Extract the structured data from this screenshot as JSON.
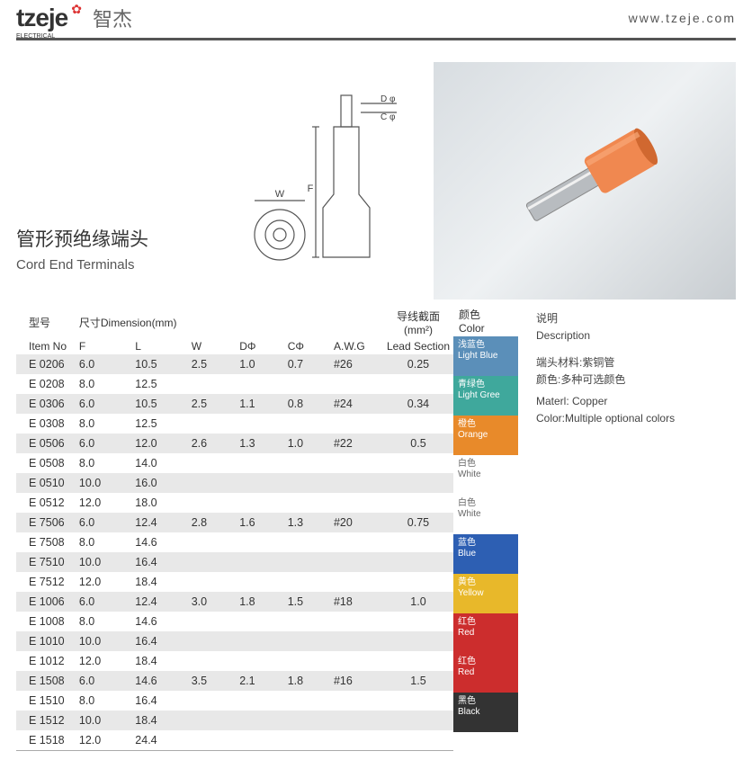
{
  "header": {
    "brand_en": "tzeje",
    "brand_cn": "智杰",
    "url": "www.tzeje.com"
  },
  "title": {
    "cn": "管形预绝缘端头",
    "en": "Cord End Terminals"
  },
  "diagram": {
    "labels": {
      "D": "D",
      "C": "C",
      "F": "F",
      "W": "W",
      "phi": "φ"
    }
  },
  "thead": {
    "item_cn": "型号",
    "item_en": "Item No",
    "dim_cn": "尺寸Dimension(mm)",
    "F": "F",
    "L": "L",
    "W": "W",
    "D": "DΦ",
    "C": "CΦ",
    "awg": "A.W.G",
    "lead_cn": "导线截面(mm²)",
    "lead_en": "Lead Section",
    "color_cn": "颜色",
    "color_en": "Color",
    "desc_cn": "说明",
    "desc_en": "Description"
  },
  "rows": [
    {
      "n": "E 0206",
      "F": "6.0",
      "L": "10.5",
      "W": "2.5",
      "D": "1.0",
      "C": "0.7",
      "awg": "#26",
      "ls": "0.25",
      "alt": 1
    },
    {
      "n": "E 0208",
      "F": "8.0",
      "L": "12.5",
      "alt": 0
    },
    {
      "n": "E 0306",
      "F": "6.0",
      "L": "10.5",
      "W": "2.5",
      "D": "1.1",
      "C": "0.8",
      "awg": "#24",
      "ls": "0.34",
      "alt": 1
    },
    {
      "n": "E 0308",
      "F": "8.0",
      "L": "12.5",
      "alt": 0
    },
    {
      "n": "E 0506",
      "F": "6.0",
      "L": "12.0",
      "W": "2.6",
      "D": "1.3",
      "C": "1.0",
      "awg": "#22",
      "ls": "0.5",
      "alt": 1
    },
    {
      "n": "E 0508",
      "F": "8.0",
      "L": "14.0",
      "alt": 0
    },
    {
      "n": "E 0510",
      "F": "10.0",
      "L": "16.0",
      "alt": 1
    },
    {
      "n": "E 0512",
      "F": "12.0",
      "L": "18.0",
      "alt": 0
    },
    {
      "n": "E 7506",
      "F": "6.0",
      "L": "12.4",
      "W": "2.8",
      "D": "1.6",
      "C": "1.3",
      "awg": "#20",
      "ls": "0.75",
      "alt": 1
    },
    {
      "n": "E 7508",
      "F": "8.0",
      "L": "14.6",
      "alt": 0
    },
    {
      "n": "E 7510",
      "F": "10.0",
      "L": "16.4",
      "alt": 1
    },
    {
      "n": "E 7512",
      "F": "12.0",
      "L": "18.4",
      "alt": 0
    },
    {
      "n": "E 1006",
      "F": "6.0",
      "L": "12.4",
      "W": "3.0",
      "D": "1.8",
      "C": "1.5",
      "awg": "#18",
      "ls": "1.0",
      "alt": 1
    },
    {
      "n": "E 1008",
      "F": "8.0",
      "L": "14.6",
      "alt": 0
    },
    {
      "n": "E 1010",
      "F": "10.0",
      "L": "16.4",
      "alt": 1
    },
    {
      "n": "E 1012",
      "F": "12.0",
      "L": "18.4",
      "alt": 0
    },
    {
      "n": "E 1508",
      "F": "6.0",
      "L": "14.6",
      "W": "3.5",
      "D": "2.1",
      "C": "1.8",
      "awg": "#16",
      "ls": "1.5",
      "alt": 1
    },
    {
      "n": "E 1510",
      "F": "8.0",
      "L": "16.4",
      "alt": 0
    },
    {
      "n": "E 1512",
      "F": "10.0",
      "L": "18.4",
      "alt": 1
    },
    {
      "n": "E 1518",
      "F": "12.0",
      "L": "24.4",
      "alt": 0
    }
  ],
  "swatches": [
    {
      "cn": "浅蓝色",
      "en": "Light Blue",
      "bg": "#5b8fb9",
      "h": 44
    },
    {
      "cn": "青绿色",
      "en": "Light Gree",
      "bg": "#3fa89c",
      "h": 44
    },
    {
      "cn": "橙色",
      "en": "Orange",
      "bg": "#e88a2a",
      "h": 44
    },
    {
      "cn": "白色",
      "en": "White",
      "bg": "#ffffff",
      "fg": "#666",
      "h": 44
    },
    {
      "cn": "白色",
      "en": "White",
      "bg": "#ffffff",
      "fg": "#666",
      "h": 44
    },
    {
      "cn": "蓝色",
      "en": "Blue",
      "bg": "#2d5fb3",
      "h": 44
    },
    {
      "cn": "黄色",
      "en": "Yellow",
      "bg": "#e8b82a",
      "h": 44
    },
    {
      "cn": "红色",
      "en": "Red",
      "bg": "#cc2d2d",
      "h": 44
    },
    {
      "cn": "红色",
      "en": "Red",
      "bg": "#cc2d2d",
      "h": 44
    },
    {
      "cn": "黑色",
      "en": "Black",
      "bg": "#333333",
      "h": 44
    }
  ],
  "desc": {
    "l1": "端头材料:紫铜管",
    "l2": "颜色:多种可选颜色",
    "l3": "Materl: Copper",
    "l4": "Color:Multiple optional colors"
  }
}
